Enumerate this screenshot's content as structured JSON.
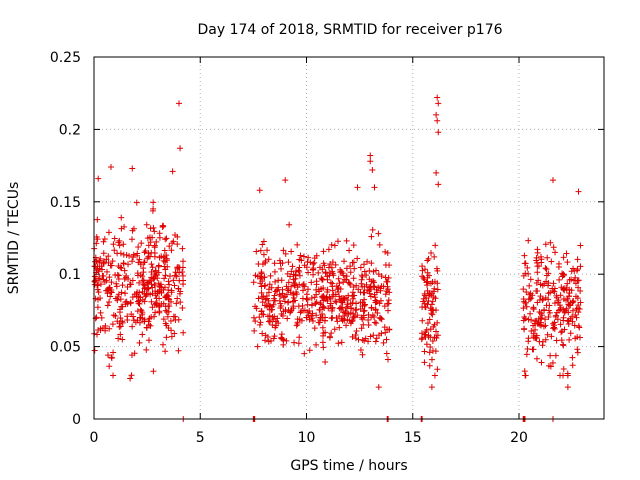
{
  "chart_data": {
    "type": "scatter",
    "title": "Day 174 of 2018, SRMTID for receiver p176",
    "xlabel": "GPS time / hours",
    "ylabel": "SRMTID / TECUs",
    "xlim": [
      0,
      24
    ],
    "ylim": [
      0,
      0.25
    ],
    "xticks": [
      0,
      5,
      10,
      15,
      20
    ],
    "xtick_labels": [
      "0",
      "5",
      "10",
      "15",
      "20"
    ],
    "yticks": [
      0,
      0.05,
      0.1,
      0.15,
      0.2,
      0.25
    ],
    "ytick_labels": [
      "0",
      "0.05",
      "0.1",
      "0.15",
      "0.2",
      "0.25"
    ],
    "grid": true,
    "marker": "+",
    "color": "#e00000",
    "clusters": [
      {
        "x_start": 0.0,
        "x_end": 4.2,
        "y_mean": 0.092,
        "y_spread": 0.028,
        "count": 420
      },
      {
        "x_start": 7.5,
        "x_end": 13.9,
        "y_mean": 0.082,
        "y_spread": 0.024,
        "count": 560
      },
      {
        "x_start": 15.4,
        "x_end": 16.2,
        "y_mean": 0.078,
        "y_spread": 0.026,
        "count": 90
      },
      {
        "x_start": 20.2,
        "x_end": 22.9,
        "y_mean": 0.078,
        "y_spread": 0.026,
        "count": 260
      }
    ],
    "highlight_points": [
      {
        "x": 4.0,
        "y": 0.218
      },
      {
        "x": 4.05,
        "y": 0.187
      },
      {
        "x": 0.2,
        "y": 0.166
      },
      {
        "x": 0.8,
        "y": 0.174
      },
      {
        "x": 1.8,
        "y": 0.173
      },
      {
        "x": 3.7,
        "y": 0.171
      },
      {
        "x": 16.15,
        "y": 0.222
      },
      {
        "x": 16.2,
        "y": 0.218
      },
      {
        "x": 16.1,
        "y": 0.21
      },
      {
        "x": 16.15,
        "y": 0.206
      },
      {
        "x": 16.2,
        "y": 0.198
      },
      {
        "x": 16.1,
        "y": 0.17
      },
      {
        "x": 16.2,
        "y": 0.162
      },
      {
        "x": 15.9,
        "y": 0.022
      },
      {
        "x": 13.0,
        "y": 0.182
      },
      {
        "x": 13.0,
        "y": 0.178
      },
      {
        "x": 13.1,
        "y": 0.172
      },
      {
        "x": 13.2,
        "y": 0.16
      },
      {
        "x": 9.0,
        "y": 0.165
      },
      {
        "x": 12.4,
        "y": 0.16
      },
      {
        "x": 13.4,
        "y": 0.022
      },
      {
        "x": 7.8,
        "y": 0.158
      },
      {
        "x": 22.8,
        "y": 0.157
      },
      {
        "x": 21.6,
        "y": 0.165
      },
      {
        "x": 22.3,
        "y": 0.03
      },
      {
        "x": 22.3,
        "y": 0.022
      },
      {
        "x": 1.7,
        "y": 0.028
      }
    ],
    "zero_points": [
      4.2,
      7.5,
      7.52,
      7.54,
      7.56,
      13.8,
      13.82,
      13.84,
      15.4,
      15.42,
      15.44,
      20.2,
      20.22,
      20.24,
      20.26,
      20.28,
      21.6
    ]
  }
}
